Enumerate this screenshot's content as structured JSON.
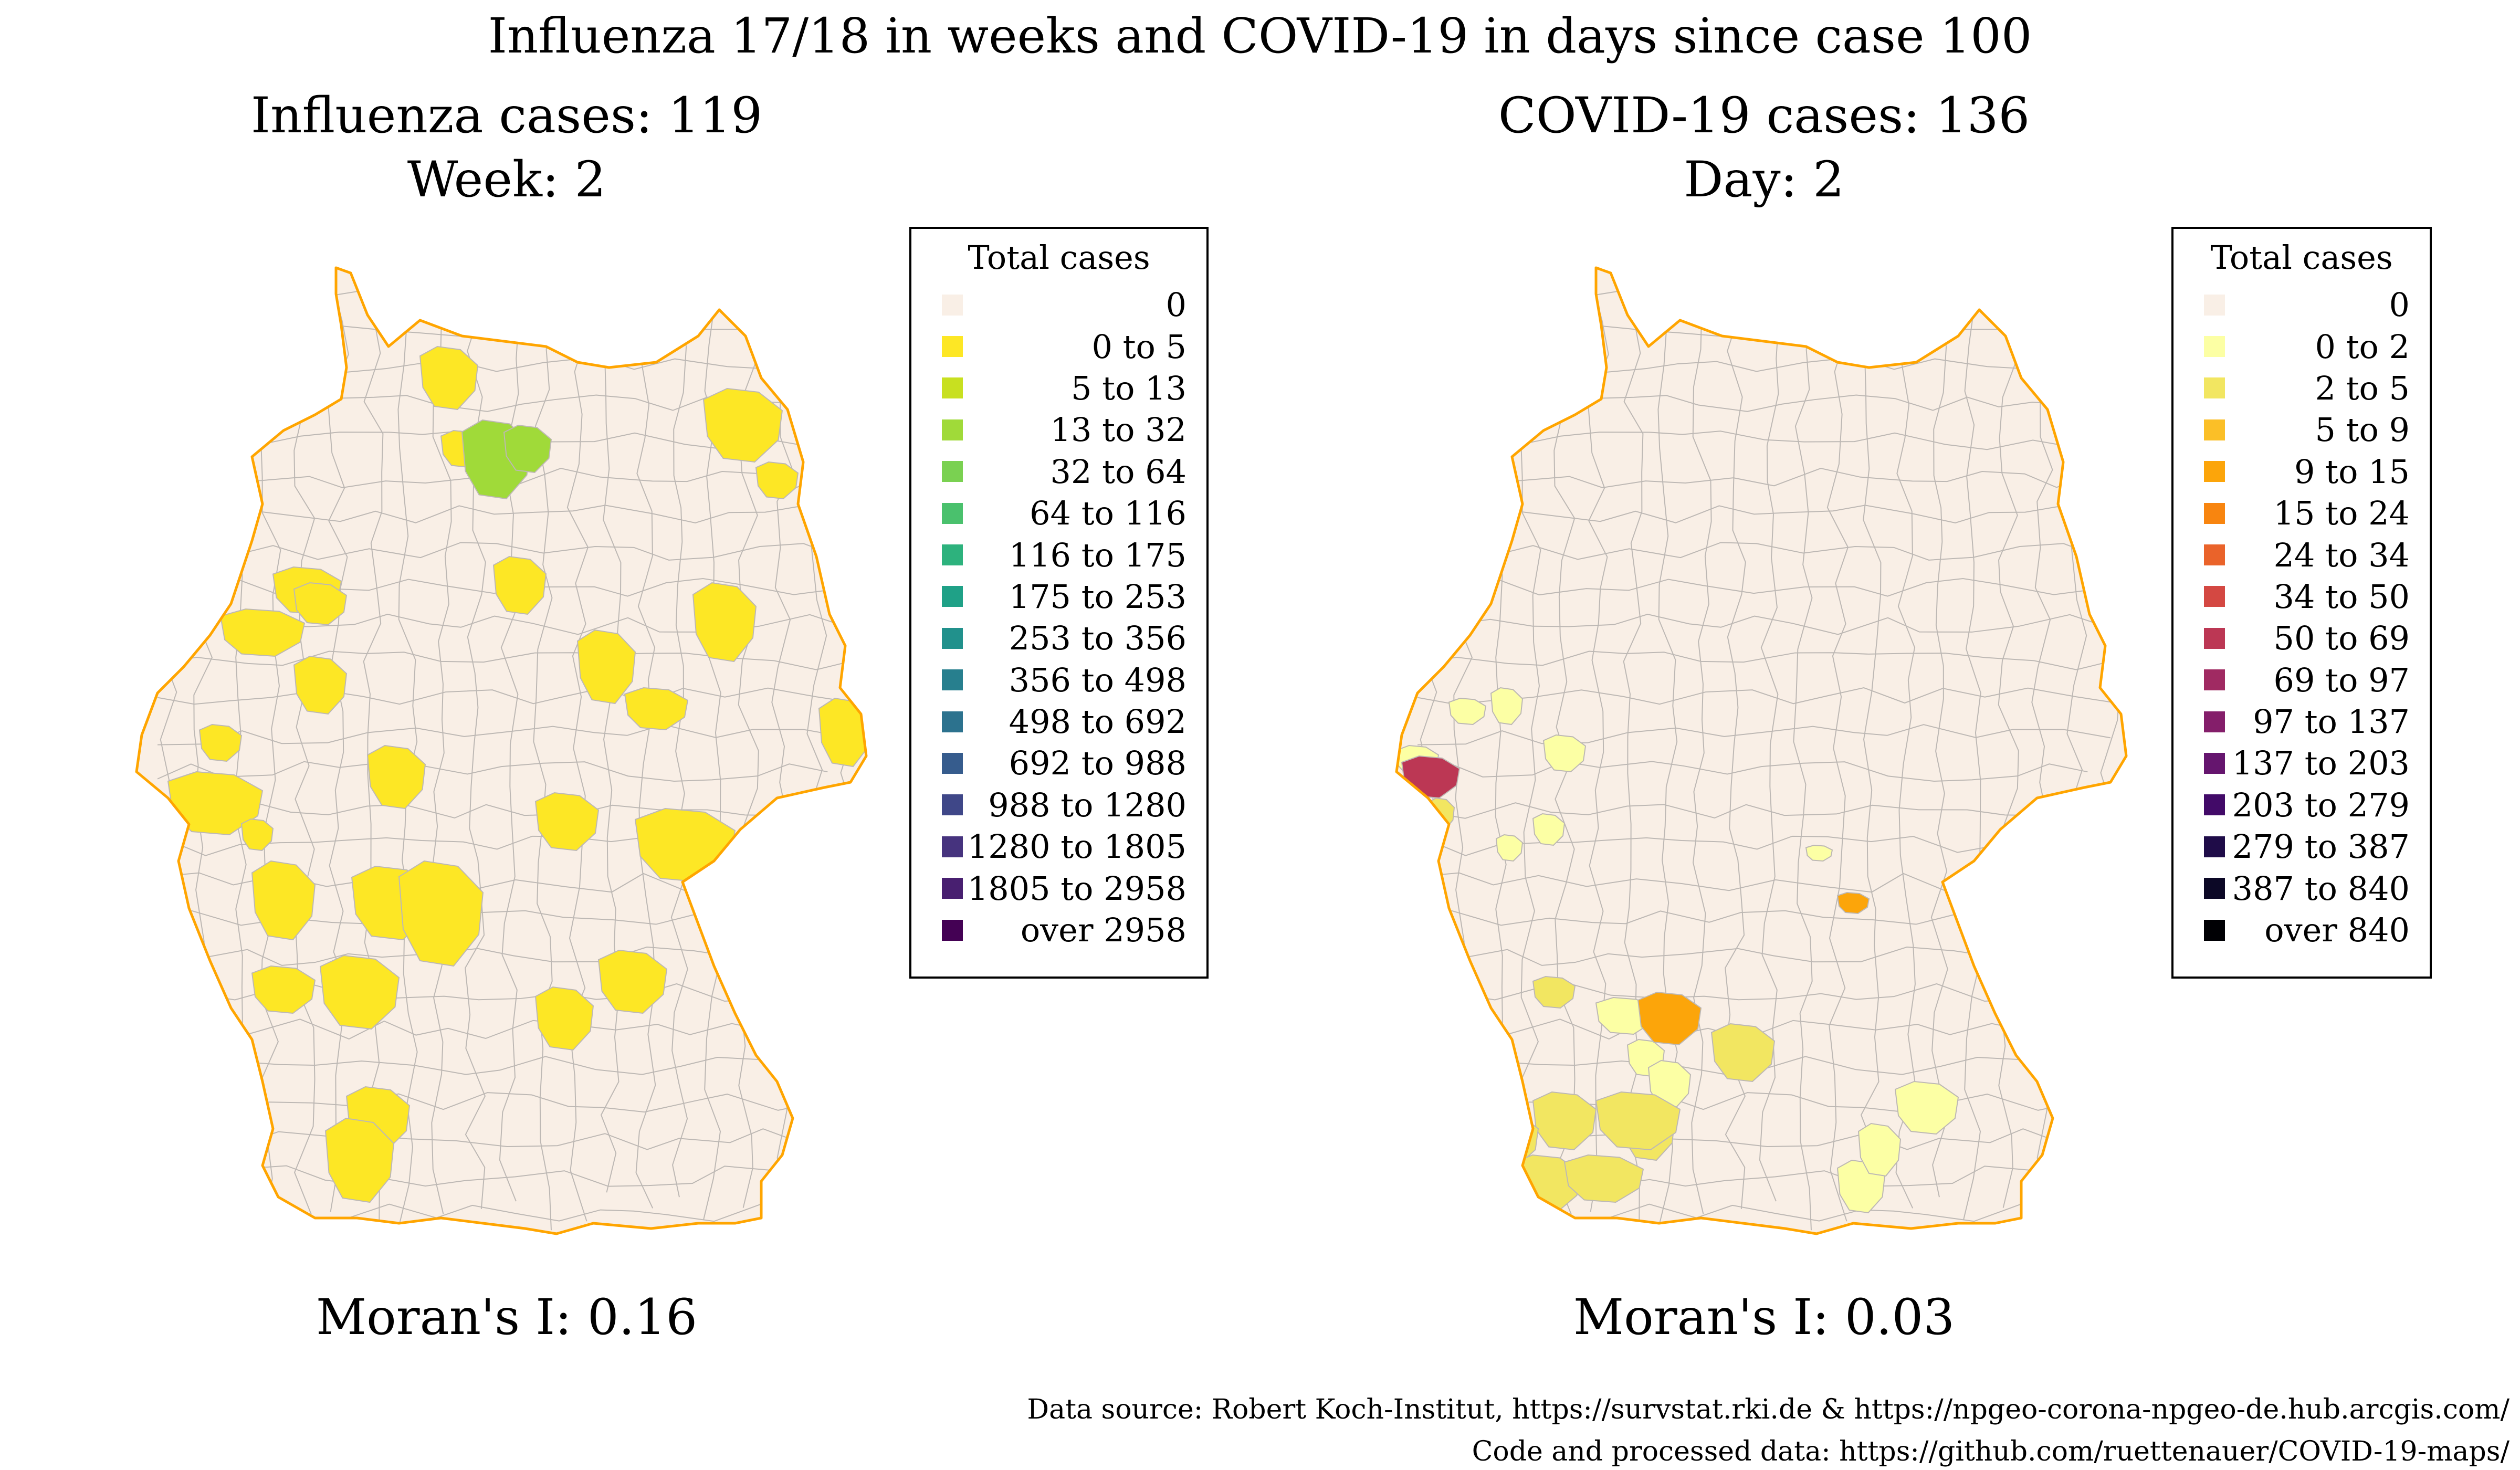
{
  "suptitle": "Influenza 17/18 in weeks and COVID-19 in days since case 100",
  "panels": [
    {
      "title_line1": "Influenza cases: 119",
      "title_line2": "Week: 2",
      "moran": "Moran's I: 0.16",
      "legend_title": "Total cases",
      "legend": [
        {
          "label": "0",
          "color": "#f9efe6"
        },
        {
          "label": "0 to 5",
          "color": "#fde725"
        },
        {
          "label": "5 to 13",
          "color": "#c8e020"
        },
        {
          "label": "13 to 32",
          "color": "#a0da39"
        },
        {
          "label": "32 to 64",
          "color": "#7ad151"
        },
        {
          "label": "64 to 116",
          "color": "#4ac16d"
        },
        {
          "label": "116 to 175",
          "color": "#2db27d"
        },
        {
          "label": "175 to 253",
          "color": "#1fa187"
        },
        {
          "label": "253 to 356",
          "color": "#21918c"
        },
        {
          "label": "356 to 498",
          "color": "#277f8e"
        },
        {
          "label": "498 to 692",
          "color": "#2c728e"
        },
        {
          "label": "692 to 988",
          "color": "#365c8d"
        },
        {
          "label": "988 to 1280",
          "color": "#3f4788"
        },
        {
          "label": "1280 to 1805",
          "color": "#46337e"
        },
        {
          "label": "1805 to 2958",
          "color": "#481f70"
        },
        {
          "label": "over 2958",
          "color": "#440154"
        }
      ],
      "border_color": "#ffa500",
      "regions": [
        {
          "cls": 1
        },
        {
          "cls": 1
        },
        {
          "cls": 3
        },
        {
          "cls": 3
        },
        {
          "cls": 1
        },
        {
          "cls": 1
        },
        {
          "cls": 1
        },
        {
          "cls": 1
        },
        {
          "cls": 1
        },
        {
          "cls": 1
        },
        {
          "cls": 1
        },
        {
          "cls": 1
        },
        {
          "cls": 1
        },
        {
          "cls": 1
        },
        {
          "cls": 1
        },
        {
          "cls": 1
        },
        {
          "cls": 1
        },
        {
          "cls": 1
        },
        {
          "cls": 1
        },
        {
          "cls": 1
        },
        {
          "cls": 1
        },
        {
          "cls": 1
        },
        {
          "cls": 1
        },
        {
          "cls": 1
        },
        {
          "cls": 1
        },
        {
          "cls": 1
        },
        {
          "cls": 1
        },
        {
          "cls": 1
        },
        {
          "cls": 1
        },
        {
          "cls": 1
        }
      ]
    },
    {
      "title_line1": "COVID-19 cases: 136",
      "title_line2": "Day: 2",
      "moran": "Moran's I: 0.03",
      "legend_title": "Total cases",
      "legend": [
        {
          "label": "0",
          "color": "#f9efe6"
        },
        {
          "label": "0 to 2",
          "color": "#fcffa4"
        },
        {
          "label": "2 to 5",
          "color": "#f2e661"
        },
        {
          "label": "5 to 9",
          "color": "#fbbf27"
        },
        {
          "label": "9 to 15",
          "color": "#fca50a"
        },
        {
          "label": "15 to 24",
          "color": "#f8850f"
        },
        {
          "label": "24 to 34",
          "color": "#ea632a"
        },
        {
          "label": "34 to 50",
          "color": "#d44842"
        },
        {
          "label": "50 to 69",
          "color": "#bc3754"
        },
        {
          "label": "69 to 97",
          "color": "#a02a62"
        },
        {
          "label": "97 to 137",
          "color": "#841e6a"
        },
        {
          "label": "137 to 203",
          "color": "#65156e"
        },
        {
          "label": "203 to 279",
          "color": "#420a68"
        },
        {
          "label": "279 to 387",
          "color": "#1f0c48"
        },
        {
          "label": "387 to 840",
          "color": "#0c0826"
        },
        {
          "label": "over 840",
          "color": "#000004"
        }
      ],
      "border_color": "#ffa500",
      "regions": [
        {
          "cls": 1
        },
        {
          "cls": 1
        },
        {
          "cls": 1
        },
        {
          "cls": 1
        },
        {
          "cls": 8
        },
        {
          "cls": 2
        },
        {
          "cls": 1
        },
        {
          "cls": 1
        },
        {
          "cls": 1
        },
        {
          "cls": 1
        },
        {
          "cls": 1
        },
        {
          "cls": 4
        },
        {
          "cls": 2
        },
        {
          "cls": 1
        },
        {
          "cls": 1
        },
        {
          "cls": 1
        },
        {
          "cls": 2
        },
        {
          "cls": 2
        },
        {
          "cls": 2
        },
        {
          "cls": 2
        },
        {
          "cls": 2
        },
        {
          "cls": 2
        },
        {
          "cls": 4
        },
        {
          "cls": 2
        },
        {
          "cls": 1
        },
        {
          "cls": 1
        },
        {
          "cls": 1
        }
      ]
    }
  ],
  "caption_line1": "Data source: Robert Koch-Institut, https://survstat.rki.de & https://npgeo-corona-npgeo-de.hub.arcgis.com/",
  "caption_line2": "Code and processed data: https://github.com/ruettenauer/COVID-19-maps/"
}
